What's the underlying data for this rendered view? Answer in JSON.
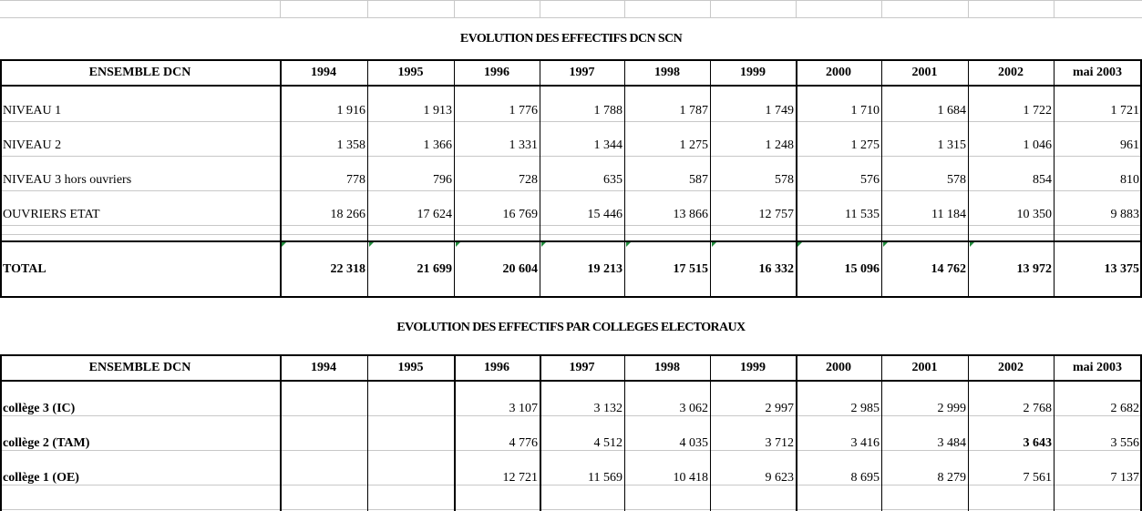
{
  "table1": {
    "title": "EVOLUTION DES EFFECTIFS  DCN  SCN",
    "header": [
      "ENSEMBLE DCN",
      "1994",
      "1995",
      "1996",
      "1997",
      "1998",
      "1999",
      "2000",
      "2001",
      "2002",
      "mai 2003"
    ],
    "rows": [
      {
        "label": "NIVEAU 1",
        "values": [
          "1 916",
          "1 913",
          "1 776",
          "1 788",
          "1 787",
          "1 749",
          "1 710",
          "1 684",
          "1 722",
          "1 721"
        ]
      },
      {
        "label": "NIVEAU 2",
        "values": [
          "1 358",
          "1 366",
          "1 331",
          "1 344",
          "1 275",
          "1 248",
          "1 275",
          "1 315",
          "1 046",
          "961"
        ]
      },
      {
        "label": "NIVEAU 3 hors ouvriers",
        "values": [
          "778",
          "796",
          "728",
          "635",
          "587",
          "578",
          "576",
          "578",
          "854",
          "810"
        ]
      },
      {
        "label": "OUVRIERS ETAT",
        "values": [
          "18 266",
          "17 624",
          "16 769",
          "15 446",
          "13 866",
          "12 757",
          "11 535",
          "11 184",
          "10 350",
          "9 883"
        ]
      }
    ],
    "total": {
      "label": "TOTAL",
      "values": [
        "22 318",
        "21 699",
        "20 604",
        "19 213",
        "17 515",
        "16 332",
        "15 096",
        "14 762",
        "13 972",
        "13 375"
      ]
    }
  },
  "table2": {
    "title": "EVOLUTION DES EFFECTIFS  PAR COLLEGES ELECTORAUX",
    "header": [
      "ENSEMBLE DCN",
      "1994",
      "1995",
      "1996",
      "1997",
      "1998",
      "1999",
      "2000",
      "2001",
      "2002",
      "mai 2003"
    ],
    "rows": [
      {
        "label": "collège 3 (IC)",
        "values": [
          "",
          "",
          "3 107",
          "3 132",
          "3 062",
          "2 997",
          "2 985",
          "2 999",
          "2 768",
          "2 682"
        ]
      },
      {
        "label": "collège 2 (TAM)",
        "values": [
          "",
          "",
          "4 776",
          "4 512",
          "4 035",
          "3 712",
          "3 416",
          "3 484",
          "3 643",
          "3 556"
        ]
      },
      {
        "label": "collège 1 (OE)",
        "values": [
          "",
          "",
          "12 721",
          "11 569",
          "10 418",
          "9 623",
          "8 695",
          "8 279",
          "7 561",
          "7 137"
        ]
      }
    ]
  },
  "style": {
    "grid_color": "#000000",
    "light_grid_color": "#c8c8c8",
    "marker_color": "#1f8a3a"
  }
}
